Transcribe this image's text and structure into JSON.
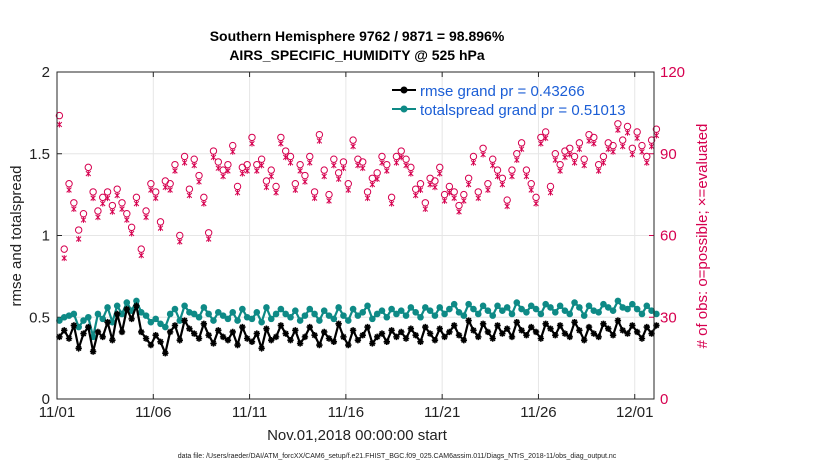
{
  "colors": {
    "rmse": "#000000",
    "spread": "#0e8a86",
    "obs": "#d6004f",
    "legend_text": "#1b5ed6",
    "grid": "#e6e6e6"
  },
  "chart_data": {
    "type": "line",
    "title_line1": "Southern Hemisphere 9762 / 9871 = 98.896%",
    "title_line2": "AIRS_SPECIFIC_HUMIDITY @ 525 hPa",
    "xlabel": "Nov.01,2018 00:00:00 start",
    "ylabel": "rmse and totalspread",
    "ylabel_right": "# of obs: o=possible; ×=evaluated",
    "footnote": "data file: /Users/raeder/DAI/ATM_forcXX/CAM6_setup/f.e21.FHIST_BGC.f09_025.CAM6assim.011/Diags_NTrS_2018-11/obs_diag_output.nc",
    "xlim": [
      0,
      31
    ],
    "ylim": [
      0,
      2
    ],
    "ylim_right": [
      0,
      120
    ],
    "x_ticks": [
      0,
      5,
      10,
      15,
      20,
      25,
      30
    ],
    "x_tick_labels": [
      "11/01",
      "11/06",
      "11/11",
      "11/16",
      "11/21",
      "11/26",
      "12/01"
    ],
    "y_ticks": [
      "0",
      "0.5",
      "1",
      "1.5",
      "2"
    ],
    "y_ticks_right": [
      "0",
      "30",
      "60",
      "90",
      "120"
    ],
    "legend": [
      "rmse grand pr = 0.43266",
      "totalspread grand pr = 0.51013"
    ],
    "x_step_days": 0.25,
    "series": [
      {
        "name": "rmse",
        "axis": "left",
        "values": [
          0.38,
          0.42,
          0.37,
          0.45,
          0.31,
          0.4,
          0.44,
          0.29,
          0.41,
          0.38,
          0.47,
          0.36,
          0.52,
          0.41,
          0.55,
          0.49,
          0.57,
          0.41,
          0.37,
          0.33,
          0.39,
          0.35,
          0.28,
          0.41,
          0.45,
          0.36,
          0.48,
          0.43,
          0.4,
          0.37,
          0.46,
          0.39,
          0.34,
          0.42,
          0.38,
          0.36,
          0.41,
          0.33,
          0.44,
          0.37,
          0.35,
          0.4,
          0.31,
          0.43,
          0.36,
          0.38,
          0.45,
          0.4,
          0.36,
          0.42,
          0.34,
          0.38,
          0.44,
          0.39,
          0.33,
          0.41,
          0.37,
          0.35,
          0.46,
          0.38,
          0.33,
          0.42,
          0.36,
          0.39,
          0.44,
          0.34,
          0.38,
          0.4,
          0.35,
          0.42,
          0.38,
          0.41,
          0.37,
          0.43,
          0.39,
          0.35,
          0.44,
          0.4,
          0.36,
          0.43,
          0.38,
          0.41,
          0.45,
          0.39,
          0.36,
          0.48,
          0.42,
          0.38,
          0.46,
          0.41,
          0.37,
          0.45,
          0.4,
          0.43,
          0.38,
          0.47,
          0.42,
          0.39,
          0.44,
          0.41,
          0.37,
          0.46,
          0.43,
          0.39,
          0.45,
          0.4,
          0.38,
          0.47,
          0.42,
          0.36,
          0.44,
          0.4,
          0.38,
          0.46,
          0.43,
          0.39,
          0.48,
          0.42,
          0.4,
          0.45,
          0.41,
          0.37,
          0.44,
          0.4,
          0.45
        ],
        "marker": "star"
      },
      {
        "name": "totalspread",
        "axis": "left",
        "values": [
          0.48,
          0.5,
          0.51,
          0.52,
          0.44,
          0.48,
          0.5,
          0.38,
          0.52,
          0.49,
          0.56,
          0.47,
          0.57,
          0.52,
          0.59,
          0.54,
          0.6,
          0.53,
          0.51,
          0.47,
          0.49,
          0.46,
          0.44,
          0.52,
          0.55,
          0.48,
          0.57,
          0.53,
          0.52,
          0.5,
          0.56,
          0.52,
          0.48,
          0.53,
          0.51,
          0.49,
          0.53,
          0.48,
          0.55,
          0.5,
          0.49,
          0.53,
          0.47,
          0.56,
          0.49,
          0.52,
          0.55,
          0.52,
          0.5,
          0.54,
          0.48,
          0.51,
          0.55,
          0.52,
          0.48,
          0.54,
          0.51,
          0.49,
          0.56,
          0.51,
          0.48,
          0.55,
          0.51,
          0.53,
          0.57,
          0.49,
          0.52,
          0.54,
          0.5,
          0.55,
          0.52,
          0.54,
          0.51,
          0.56,
          0.53,
          0.5,
          0.56,
          0.54,
          0.51,
          0.56,
          0.52,
          0.55,
          0.58,
          0.53,
          0.51,
          0.58,
          0.55,
          0.52,
          0.57,
          0.54,
          0.51,
          0.57,
          0.54,
          0.56,
          0.52,
          0.59,
          0.55,
          0.53,
          0.57,
          0.55,
          0.52,
          0.58,
          0.56,
          0.53,
          0.57,
          0.54,
          0.52,
          0.59,
          0.56,
          0.51,
          0.57,
          0.54,
          0.53,
          0.58,
          0.56,
          0.54,
          0.6,
          0.56,
          0.55,
          0.58,
          0.55,
          0.52,
          0.57,
          0.54,
          0.52
        ],
        "marker": "dot"
      },
      {
        "name": "obs_possible",
        "axis": "right",
        "values": [
          104,
          55,
          79,
          72,
          62,
          68,
          85,
          76,
          69,
          74,
          76,
          71,
          77,
          72,
          68,
          63,
          74,
          55,
          69,
          79,
          76,
          65,
          80,
          79,
          86,
          60,
          89,
          77,
          88,
          82,
          74,
          61,
          91,
          87,
          84,
          86,
          93,
          78,
          85,
          86,
          96,
          86,
          88,
          80,
          84,
          78,
          96,
          91,
          89,
          79,
          86,
          82,
          89,
          76,
          97,
          84,
          75,
          88,
          83,
          87,
          79,
          95,
          88,
          87,
          76,
          81,
          83,
          89,
          86,
          74,
          89,
          91,
          88,
          85,
          77,
          79,
          72,
          81,
          80,
          85,
          75,
          78,
          76,
          71,
          75,
          81,
          89,
          76,
          92,
          79,
          88,
          84,
          81,
          73,
          84,
          90,
          94,
          84,
          79,
          74,
          96,
          98,
          78,
          90,
          86,
          91,
          92,
          89,
          94,
          88,
          97,
          96,
          86,
          89,
          94,
          93,
          101,
          95,
          100,
          92,
          98,
          93,
          89,
          95,
          99
        ],
        "marker": "circle"
      },
      {
        "name": "obs_evaluated",
        "axis": "right",
        "values": [
          102,
          53,
          78,
          71,
          60,
          67,
          84,
          75,
          68,
          73,
          75,
          70,
          76,
          71,
          67,
          62,
          73,
          54,
          68,
          78,
          75,
          64,
          79,
          78,
          85,
          59,
          88,
          76,
          87,
          81,
          73,
          60,
          90,
          86,
          83,
          85,
          92,
          77,
          84,
          85,
          95,
          85,
          87,
          79,
          83,
          77,
          95,
          90,
          88,
          78,
          85,
          81,
          88,
          75,
          96,
          83,
          74,
          87,
          82,
          86,
          78,
          94,
          87,
          86,
          75,
          80,
          82,
          88,
          85,
          73,
          88,
          90,
          87,
          84,
          76,
          78,
          71,
          80,
          79,
          84,
          74,
          77,
          75,
          70,
          74,
          80,
          88,
          75,
          91,
          78,
          87,
          83,
          80,
          72,
          83,
          89,
          93,
          83,
          78,
          73,
          95,
          97,
          77,
          89,
          85,
          90,
          91,
          88,
          93,
          87,
          96,
          95,
          85,
          88,
          93,
          92,
          100,
          94,
          99,
          91,
          97,
          92,
          88,
          94,
          98
        ],
        "marker": "x"
      }
    ]
  }
}
